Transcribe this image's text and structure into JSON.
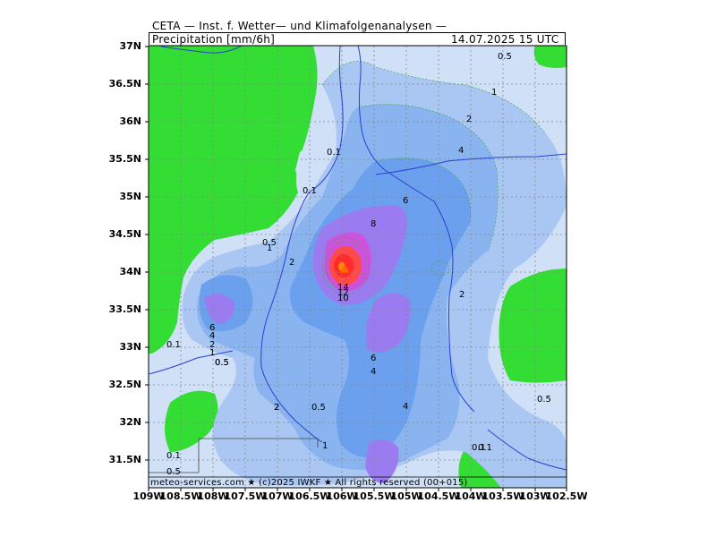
{
  "header": {
    "line1": "CETA — Inst. f. Wetter— und Klimafolgenanalysen —",
    "line2_left": "Precipitation [mm/6h]",
    "line2_right": "14.07.2025 15 UTC"
  },
  "footer": "meteo-services.com ★ (c)2025 IWKF ★ All rights reserved (00+015)",
  "axes": {
    "lat_labels": [
      "37N",
      "36.5N",
      "36N",
      "35.5N",
      "35N",
      "34.5N",
      "34N",
      "33.5N",
      "33N",
      "32.5N",
      "32N",
      "31.5N"
    ],
    "lon_labels": [
      "109W",
      "108.5W",
      "108W",
      "107.5W",
      "107W",
      "106.5W",
      "106W",
      "105.5W",
      "105W",
      "104.5W",
      "104W",
      "103.5W",
      "103W",
      "102.5W"
    ],
    "lat_range": [
      31.25,
      37.0
    ],
    "lon_range": [
      -109.0,
      -102.5
    ]
  },
  "contour_labels": [
    "0.5",
    "1",
    "2",
    "4",
    "6",
    "8",
    "10",
    "12",
    "14",
    "0.1",
    "0.5",
    "1",
    "2",
    "0.1",
    "0.1",
    "2",
    "0.5",
    "2",
    "6",
    "4",
    "0.1",
    "0.5",
    "2",
    "4",
    "1",
    "0.5",
    "0.1",
    "0.5",
    "0.1",
    "6",
    "4",
    "2",
    "1",
    "0.5"
  ],
  "colors": {
    "green": "#33dd33",
    "light_blue": "#cfe0f7",
    "blue1": "#a9c7f2",
    "blue2": "#8ab4f0",
    "blue3": "#6aa0ee",
    "purple": "#9a7cf0",
    "magenta": "#d050e0",
    "red": "#ff2a2a",
    "orange": "#ff8c00"
  }
}
